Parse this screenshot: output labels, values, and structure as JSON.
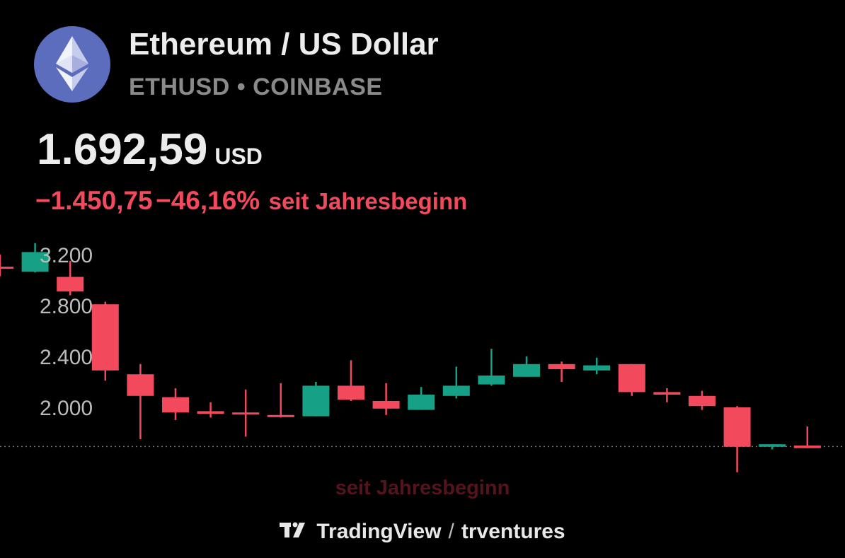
{
  "header": {
    "title": "Ethereum / US Dollar",
    "symbol": "ETHUSD • COINBASE",
    "logo_icon": "ethereum-icon"
  },
  "price": {
    "value": "1.692,59",
    "currency": "USD"
  },
  "change": {
    "absolute": "−1.450,75",
    "percent": "−46,16%",
    "period": "seit Jahresbeginn"
  },
  "colors": {
    "up": "#16a085",
    "down": "#f2495c",
    "axis_text": "#bbbbbb"
  },
  "chart_data": {
    "type": "candlestick",
    "y_ticks": [
      "3.200",
      "2.800",
      "2.400",
      "2.000"
    ],
    "y_tick_values": [
      3200,
      2800,
      2400,
      2000
    ],
    "last_price_line": 1692.59,
    "range_label": "seit Jahresbeginn",
    "candles": [
      {
        "open": 3105,
        "close": 3100,
        "high": 3200,
        "low": 3030
      },
      {
        "open": 3065,
        "close": 3220,
        "high": 3290,
        "low": 3060
      },
      {
        "open": 3025,
        "close": 2910,
        "high": 3150,
        "low": 2880
      },
      {
        "open": 2810,
        "close": 2290,
        "high": 2830,
        "low": 2210
      },
      {
        "open": 2260,
        "close": 2090,
        "high": 2340,
        "low": 1750
      },
      {
        "open": 2080,
        "close": 1960,
        "high": 2150,
        "low": 1900
      },
      {
        "open": 1970,
        "close": 1950,
        "high": 2040,
        "low": 1920
      },
      {
        "open": 1960,
        "close": 1950,
        "high": 2140,
        "low": 1770
      },
      {
        "open": 1940,
        "close": 1930,
        "high": 2190,
        "low": 1920
      },
      {
        "open": 1930,
        "close": 2170,
        "high": 2200,
        "low": 1930
      },
      {
        "open": 2170,
        "close": 2060,
        "high": 2370,
        "low": 2050
      },
      {
        "open": 2050,
        "close": 1990,
        "high": 2190,
        "low": 1940
      },
      {
        "open": 1980,
        "close": 2100,
        "high": 2160,
        "low": 1980
      },
      {
        "open": 2090,
        "close": 2170,
        "high": 2320,
        "low": 2070
      },
      {
        "open": 2180,
        "close": 2250,
        "high": 2460,
        "low": 2170
      },
      {
        "open": 2240,
        "close": 2340,
        "high": 2400,
        "low": 2240
      },
      {
        "open": 2340,
        "close": 2300,
        "high": 2360,
        "low": 2200
      },
      {
        "open": 2290,
        "close": 2330,
        "high": 2390,
        "low": 2260
      },
      {
        "open": 2340,
        "close": 2120,
        "high": 2340,
        "low": 2090
      },
      {
        "open": 2120,
        "close": 2100,
        "high": 2150,
        "low": 2040
      },
      {
        "open": 2090,
        "close": 2010,
        "high": 2130,
        "low": 1980
      },
      {
        "open": 2000,
        "close": 1690,
        "high": 2010,
        "low": 1490
      },
      {
        "open": 1690,
        "close": 1710,
        "high": 1710,
        "low": 1670
      },
      {
        "open": 1700,
        "close": 1680,
        "high": 1850,
        "low": 1680
      }
    ]
  },
  "footer": {
    "brand": "TradingView",
    "separator": "/",
    "author": "trventures",
    "brand_icon": "tradingview-logo-icon"
  }
}
